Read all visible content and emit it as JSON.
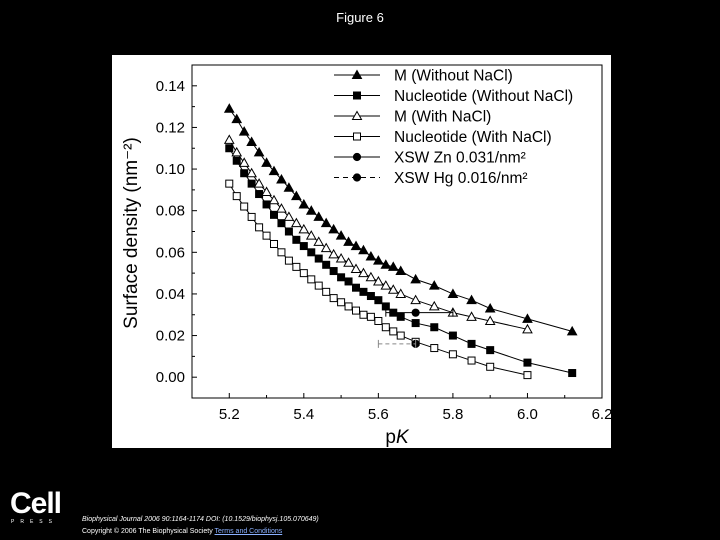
{
  "slide": {
    "title": "Figure 6"
  },
  "footer": {
    "logo_text": "Cell",
    "logo_subtext": "PRESS",
    "citation": "Biophysical Journal 2006 90:1164-1174 DOI: (10.1529/biophysj.105.070649)",
    "copyright_prefix": "Copyright © 2006 The Biophysical Society",
    "copyright_link": "Terms and Conditions"
  },
  "chart_data": {
    "type": "line",
    "xlabel": "pK",
    "ylabel": "Surface density (nm⁻²)",
    "xlim": [
      5.1,
      6.2
    ],
    "ylim": [
      -0.01,
      0.15
    ],
    "x_ticks": [
      "5.2",
      "5.4",
      "5.6",
      "5.8",
      "6.0",
      "6.2"
    ],
    "y_ticks": [
      "0.00",
      "0.02",
      "0.04",
      "0.06",
      "0.08",
      "0.10",
      "0.12",
      "0.14"
    ],
    "legend_position": "top-right",
    "series": [
      {
        "name": "M (Without NaCl)",
        "marker": "triangle",
        "filled": true,
        "dashed": false,
        "x": [
          5.2,
          5.22,
          5.24,
          5.26,
          5.28,
          5.3,
          5.32,
          5.34,
          5.36,
          5.38,
          5.4,
          5.42,
          5.44,
          5.46,
          5.48,
          5.5,
          5.52,
          5.54,
          5.56,
          5.58,
          5.6,
          5.62,
          5.64,
          5.66,
          5.7,
          5.75,
          5.8,
          5.85,
          5.9,
          6.0,
          6.12
        ],
        "y": [
          0.129,
          0.124,
          0.118,
          0.113,
          0.108,
          0.103,
          0.099,
          0.095,
          0.091,
          0.087,
          0.083,
          0.08,
          0.077,
          0.074,
          0.071,
          0.068,
          0.065,
          0.063,
          0.061,
          0.058,
          0.056,
          0.054,
          0.053,
          0.051,
          0.047,
          0.044,
          0.04,
          0.037,
          0.033,
          0.028,
          0.022
        ]
      },
      {
        "name": "Nucleotide (Without NaCl)",
        "marker": "square",
        "filled": true,
        "dashed": false,
        "x": [
          5.2,
          5.22,
          5.24,
          5.26,
          5.28,
          5.3,
          5.32,
          5.34,
          5.36,
          5.38,
          5.4,
          5.42,
          5.44,
          5.46,
          5.48,
          5.5,
          5.52,
          5.54,
          5.56,
          5.58,
          5.6,
          5.62,
          5.64,
          5.66,
          5.7,
          5.75,
          5.8,
          5.85,
          5.9,
          6.0,
          6.12
        ],
        "y": [
          0.11,
          0.104,
          0.098,
          0.093,
          0.088,
          0.083,
          0.078,
          0.074,
          0.07,
          0.066,
          0.063,
          0.06,
          0.057,
          0.054,
          0.051,
          0.048,
          0.046,
          0.043,
          0.041,
          0.039,
          0.037,
          0.034,
          0.031,
          0.029,
          0.026,
          0.024,
          0.02,
          0.016,
          0.013,
          0.007,
          0.002
        ]
      },
      {
        "name": "M (With NaCl)",
        "marker": "triangle",
        "filled": false,
        "dashed": false,
        "x": [
          5.2,
          5.22,
          5.24,
          5.26,
          5.28,
          5.3,
          5.32,
          5.34,
          5.36,
          5.38,
          5.4,
          5.42,
          5.44,
          5.46,
          5.48,
          5.5,
          5.52,
          5.54,
          5.56,
          5.58,
          5.6,
          5.62,
          5.64,
          5.66,
          5.7,
          5.75,
          5.8,
          5.85,
          5.9,
          6.0
        ],
        "y": [
          0.114,
          0.108,
          0.103,
          0.098,
          0.093,
          0.089,
          0.085,
          0.081,
          0.077,
          0.074,
          0.071,
          0.068,
          0.065,
          0.062,
          0.059,
          0.057,
          0.055,
          0.052,
          0.05,
          0.048,
          0.046,
          0.044,
          0.042,
          0.04,
          0.037,
          0.034,
          0.031,
          0.029,
          0.027,
          0.023
        ]
      },
      {
        "name": "Nucleotide (With NaCl)",
        "marker": "square",
        "filled": false,
        "dashed": false,
        "x": [
          5.2,
          5.22,
          5.24,
          5.26,
          5.28,
          5.3,
          5.32,
          5.34,
          5.36,
          5.38,
          5.4,
          5.42,
          5.44,
          5.46,
          5.48,
          5.5,
          5.52,
          5.54,
          5.56,
          5.58,
          5.6,
          5.62,
          5.64,
          5.66,
          5.7,
          5.75,
          5.8,
          5.85,
          5.9,
          6.0
        ],
        "y": [
          0.093,
          0.087,
          0.082,
          0.077,
          0.072,
          0.068,
          0.064,
          0.06,
          0.056,
          0.053,
          0.05,
          0.047,
          0.044,
          0.041,
          0.038,
          0.036,
          0.034,
          0.032,
          0.03,
          0.029,
          0.027,
          0.024,
          0.022,
          0.02,
          0.017,
          0.014,
          0.011,
          0.008,
          0.005,
          0.001
        ]
      },
      {
        "name": "XSW Zn 0.031/nm²",
        "marker": "circle",
        "filled": true,
        "dashed": false,
        "x": [
          5.7
        ],
        "y": [
          0.031
        ],
        "xerr": [
          5.62,
          5.8
        ]
      },
      {
        "name": "XSW Hg 0.016/nm²",
        "marker": "circle",
        "filled": true,
        "dashed": true,
        "x": [
          5.7
        ],
        "y": [
          0.016
        ],
        "xerr": [
          5.6,
          5.7
        ]
      }
    ]
  }
}
